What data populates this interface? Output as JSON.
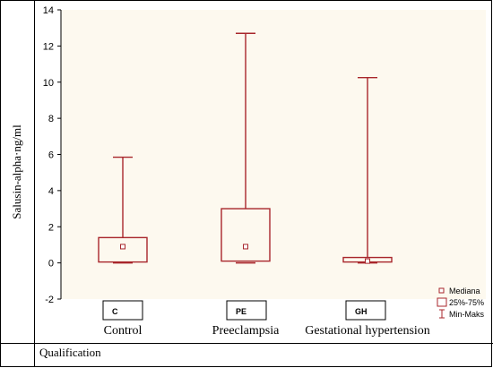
{
  "chart_data": {
    "type": "box",
    "ylabel": "Salusin-alpha·ng/ml",
    "ylim": [
      -2,
      14
    ],
    "yticks": [
      -2,
      0,
      2,
      4,
      6,
      8,
      10,
      12,
      14
    ],
    "grid": false,
    "groups": [
      {
        "code": "C",
        "label": "Control",
        "min": 0.0,
        "q1": 0.05,
        "median": 0.9,
        "q3": 1.4,
        "max": 5.85
      },
      {
        "code": "PE",
        "label": "Preeclampsia",
        "min": 0.0,
        "q1": 0.1,
        "median": 0.9,
        "q3": 3.0,
        "max": 12.7
      },
      {
        "code": "GH",
        "label": "Gestational hypertension",
        "min": 0.0,
        "q1": 0.05,
        "median": 0.1,
        "q3": 0.3,
        "max": 10.25
      }
    ],
    "legend": {
      "position": "bottom-right",
      "items": [
        "Mediana",
        "25%-75%",
        "Min-Maks"
      ]
    },
    "colors": {
      "box": "#a8262b",
      "plot_bg": "#fdf9ef"
    }
  },
  "table": {
    "xlabel": "Qualification"
  }
}
